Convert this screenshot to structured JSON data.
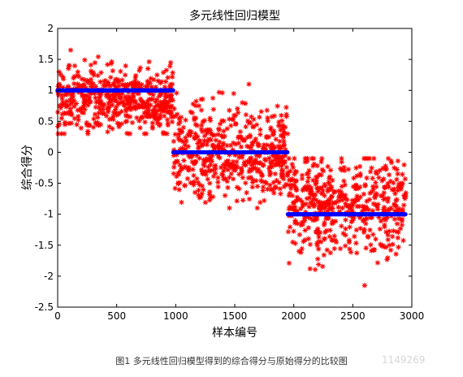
{
  "chart_data": {
    "type": "scatter",
    "title": "多元线性回归模型",
    "xlabel": "样本编号",
    "ylabel": "综合得分",
    "xlim": [
      0,
      3000
    ],
    "ylim": [
      -2.5,
      2
    ],
    "x_ticks": [
      0,
      500,
      1000,
      1500,
      2000,
      2500,
      3000
    ],
    "x_tick_labels": [
      "0",
      "500",
      "1000",
      "1500",
      "2000",
      "2500",
      "3000"
    ],
    "y_ticks": [
      -2.5,
      -2,
      -1.5,
      -1,
      -0.5,
      0,
      0.5,
      1,
      1.5,
      2
    ],
    "y_tick_labels": [
      "-2.5",
      "-2",
      "-1.5",
      "-1",
      "-0.5",
      "0",
      "0.5",
      "1",
      "1.5",
      "2"
    ],
    "grid": false,
    "legend": "none",
    "series": [
      {
        "marker": "dot",
        "color": "#0000ff",
        "segments": [
          {
            "x_start": 0,
            "x_end": 980,
            "y": 1
          },
          {
            "x_start": 980,
            "x_end": 1950,
            "y": 0
          },
          {
            "x_start": 1950,
            "x_end": 2950,
            "y": -1
          }
        ]
      },
      {
        "marker": "asterisk",
        "color": "#ff0000",
        "clusters": [
          {
            "x_start": 0,
            "x_end": 980,
            "y_center": 0.85,
            "y_min": 0.3,
            "y_max": 1.65
          },
          {
            "x_start": 980,
            "x_end": 1950,
            "y_center": 0.0,
            "y_min": -0.9,
            "y_max": 1.1
          },
          {
            "x_start": 1950,
            "x_end": 2950,
            "y_center": -0.85,
            "y_min": -2.15,
            "y_max": -0.1
          }
        ],
        "outliers": [
          {
            "x": 2600,
            "y": -2.15
          },
          {
            "x": 110,
            "y": 1.65
          },
          {
            "x": 1620,
            "y": 1.1
          }
        ]
      }
    ]
  },
  "caption": "图1  多元线性回归模型得到的综合得分与原始得分的比较图",
  "watermark": "1149269",
  "colors": {
    "points_red": "#ff0000",
    "fit_blue": "#0000ff",
    "axis": "#000000"
  }
}
